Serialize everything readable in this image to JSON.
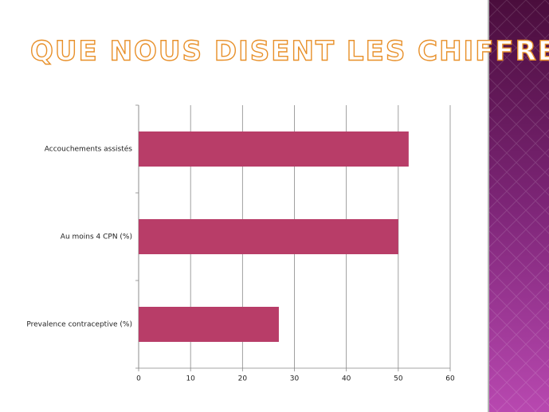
{
  "chart_data": {
    "type": "hbar",
    "title": "QUE NOUS DISENT LES CHIFFRES?",
    "categories": [
      "Accouchements assistés",
      "Au moins 4 CPN  (%)",
      "Prevalence contraceptive (%)"
    ],
    "values": [
      52,
      50,
      27
    ],
    "color": "#b83d68",
    "xlim": [
      0,
      60
    ],
    "xticks": [
      0,
      10,
      20,
      30,
      40,
      50,
      60
    ],
    "grid": true
  }
}
